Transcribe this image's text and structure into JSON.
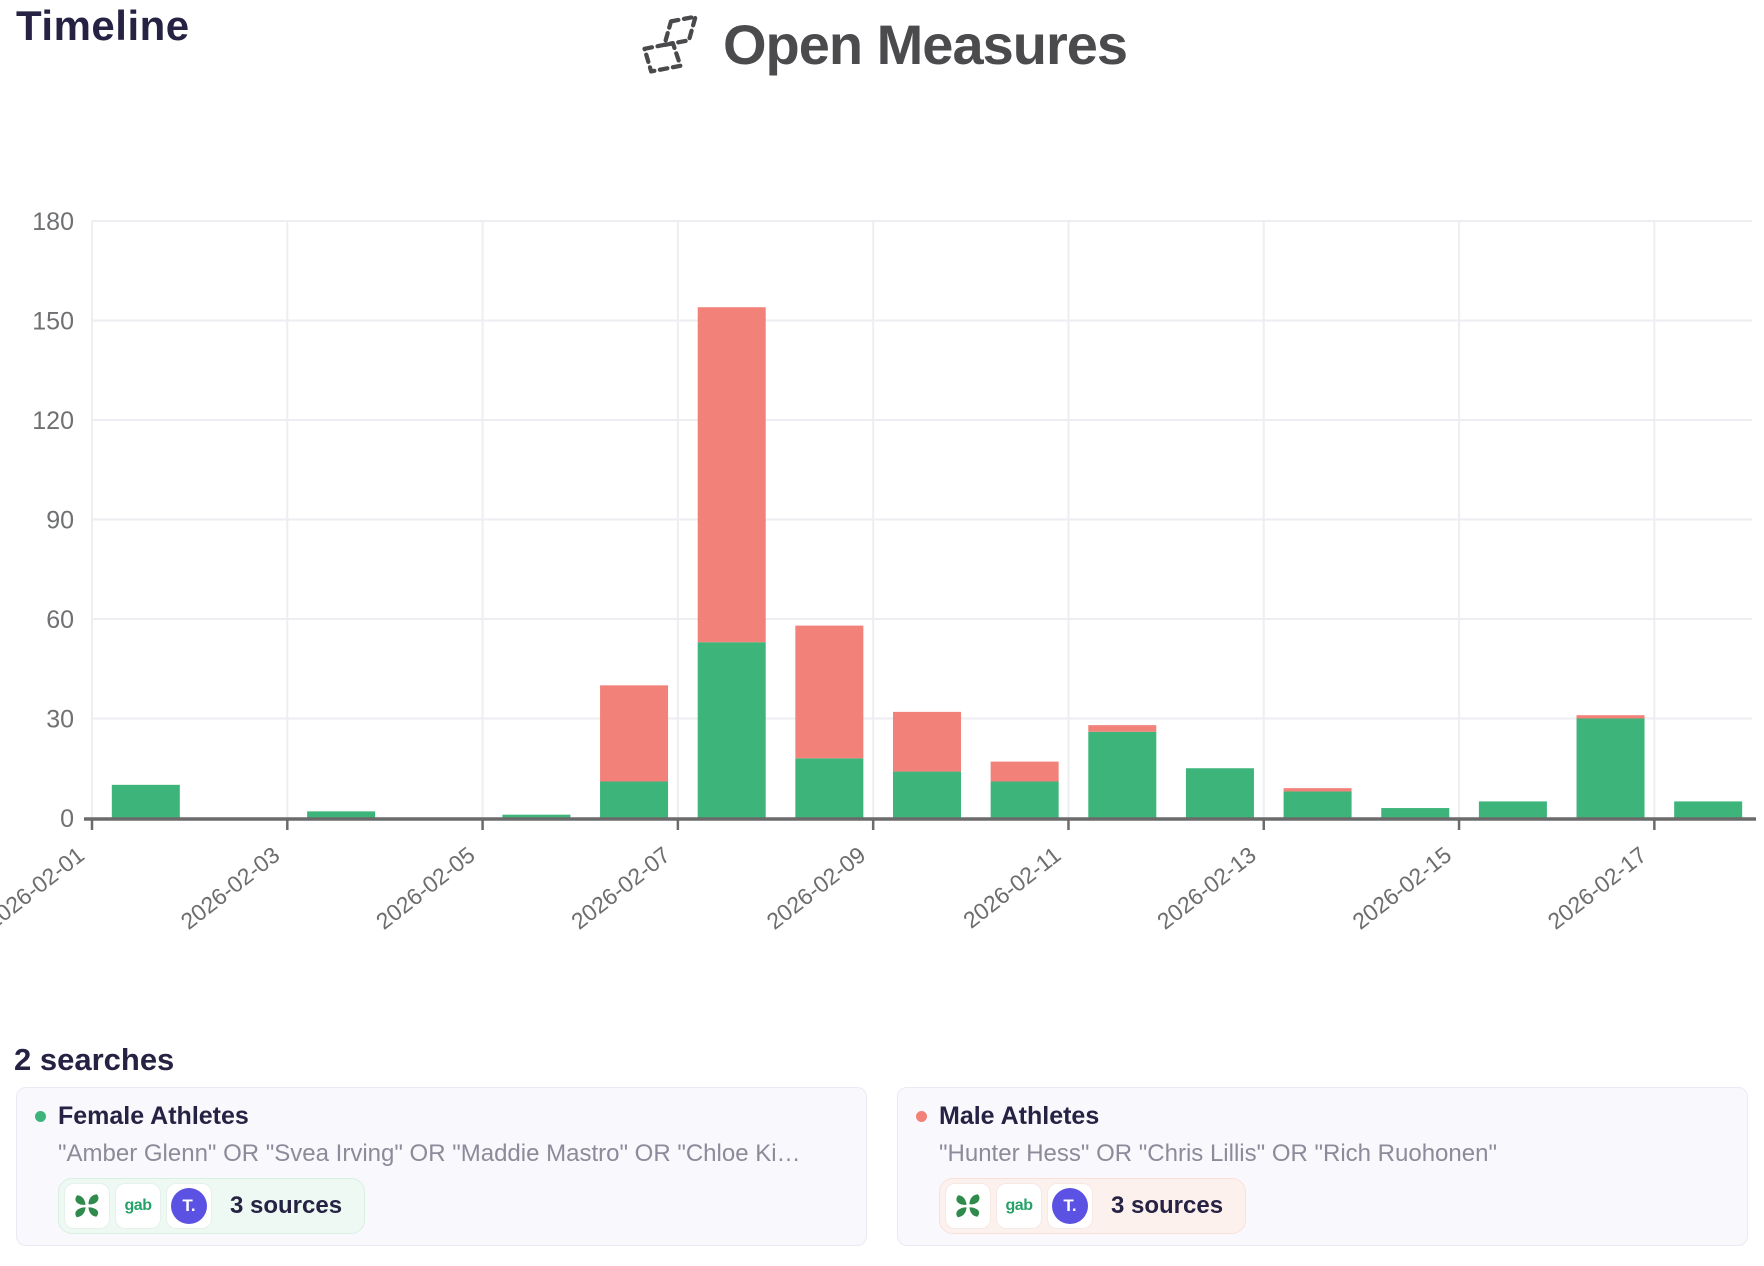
{
  "header": {
    "page_title": "Timeline",
    "brand_name": "Open Measures"
  },
  "chart_data": {
    "type": "bar",
    "stacked": true,
    "title": "Timeline",
    "x": [
      "2026-02-01",
      "2026-02-02",
      "2026-02-03",
      "2026-02-04",
      "2026-02-05",
      "2026-02-06",
      "2026-02-07",
      "2026-02-08",
      "2026-02-09",
      "2026-02-10",
      "2026-02-11",
      "2026-02-12",
      "2026-02-13",
      "2026-02-14",
      "2026-02-15",
      "2026-02-16",
      "2026-02-17"
    ],
    "series": [
      {
        "name": "Female Athletes",
        "color": "#3cb47a",
        "values": [
          10,
          0,
          2,
          0,
          1,
          11,
          53,
          18,
          14,
          11,
          26,
          15,
          8,
          3,
          5,
          30,
          5
        ]
      },
      {
        "name": "Male Athletes",
        "color": "#f2817a",
        "values": [
          0,
          0,
          0,
          0,
          0,
          29,
          101,
          40,
          18,
          6,
          2,
          0,
          1,
          0,
          0,
          1,
          0
        ]
      }
    ],
    "x_tick_labels": [
      "2026-02-01",
      "2026-02-03",
      "2026-02-05",
      "2026-02-07",
      "2026-02-09",
      "2026-02-11",
      "2026-02-13",
      "2026-02-15",
      "2026-02-17"
    ],
    "y_ticks": [
      0,
      30,
      60,
      90,
      120,
      150,
      180
    ],
    "ylim": [
      0,
      180
    ],
    "grid": true,
    "legend_position": "none",
    "colors": {
      "grid_line": "#eceef1",
      "axis_line": "#6b6b6b",
      "axis_label": "#6f6c6f"
    }
  },
  "searches": {
    "heading": "2 searches",
    "cards": [
      {
        "name": "Female Athletes",
        "dot_color": "#3cb47a",
        "query": "\"Amber Glenn\" OR \"Svea Irving\" OR \"Maddie Mastro\" OR \"Chloe Ki…",
        "sources_label": "3 sources",
        "sources": [
          "4chan",
          "gab",
          "truth-social"
        ],
        "gab_label": "gab",
        "truth_label": "T."
      },
      {
        "name": "Male Athletes",
        "dot_color": "#f2817a",
        "query": "\"Hunter Hess\" OR \"Chris Lillis\" OR \"Rich Ruohonen\"",
        "sources_label": "3 sources",
        "sources": [
          "4chan",
          "gab",
          "truth-social"
        ],
        "gab_label": "gab",
        "truth_label": "T."
      }
    ]
  }
}
